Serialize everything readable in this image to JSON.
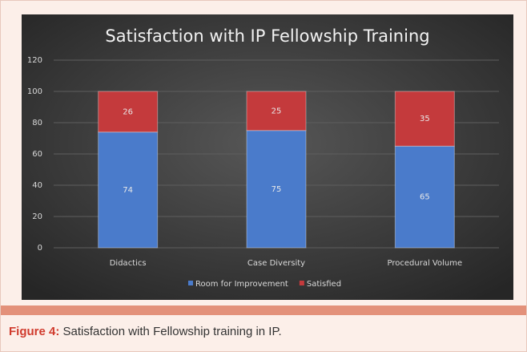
{
  "chart_data": {
    "type": "stacked_bar",
    "title": "Satisfaction with IP Fellowship Training",
    "categories": [
      "Didactics",
      "Case Diversity",
      "Procedural Volume"
    ],
    "series": [
      {
        "name": "Room for Improvement",
        "color": "#4a7bcb",
        "values": [
          74,
          75,
          65
        ]
      },
      {
        "name": "Satisfied",
        "color": "#c43a3c",
        "values": [
          26,
          25,
          35
        ]
      }
    ],
    "ylim": [
      0,
      120
    ],
    "yticks": [
      0,
      20,
      40,
      60,
      80,
      100,
      120
    ],
    "grid": true,
    "legend": "bottom"
  },
  "caption": {
    "label": "Figure 4:",
    "text": " Satisfaction with Fellowship training in IP."
  }
}
